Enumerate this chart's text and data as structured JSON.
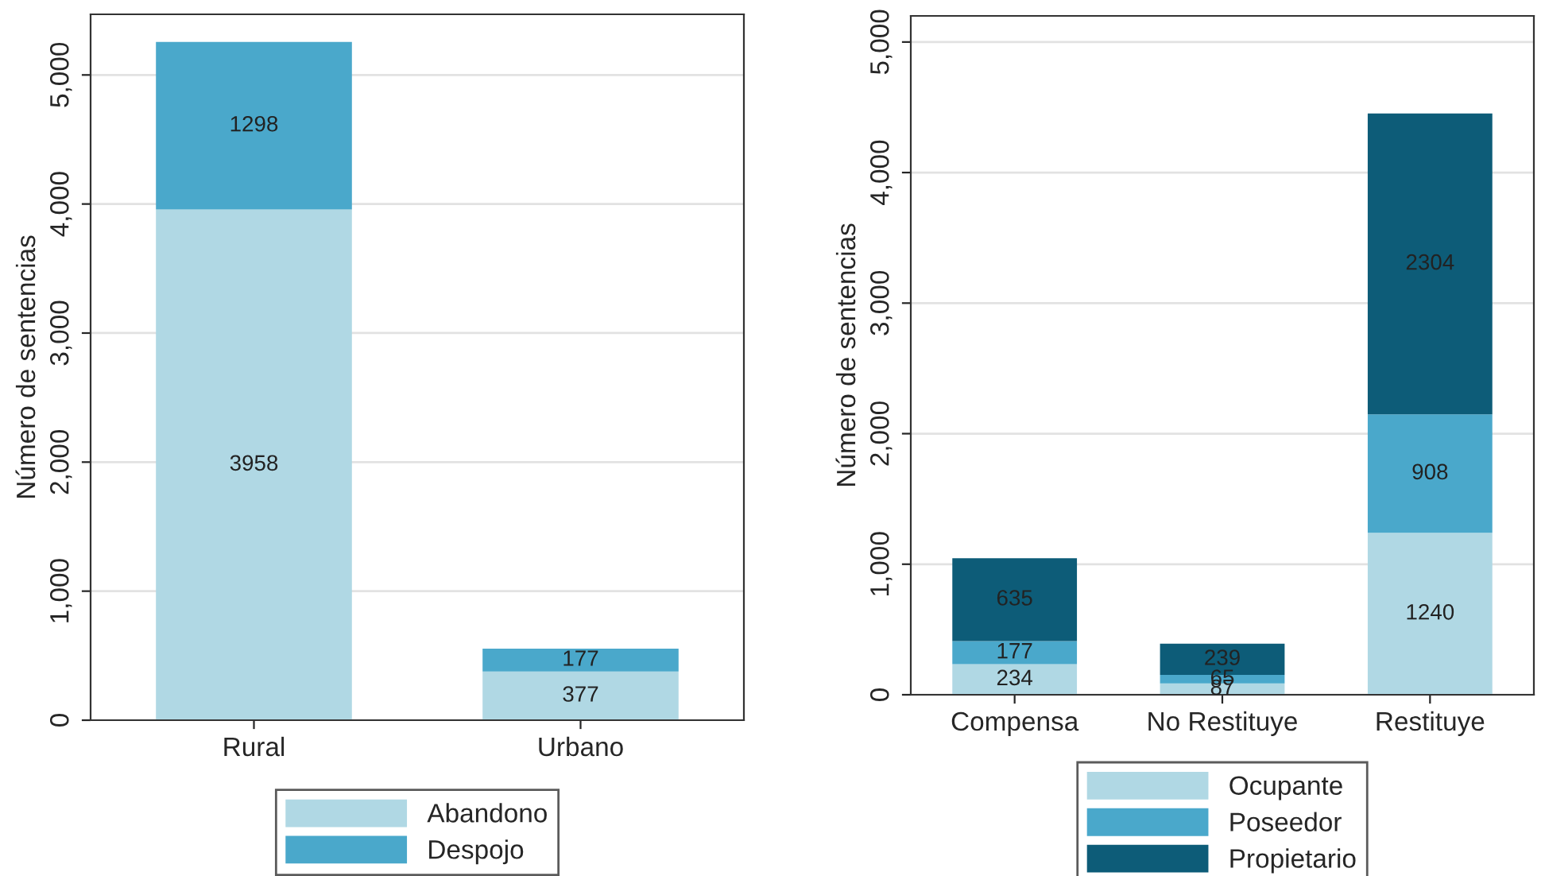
{
  "chart_data": [
    {
      "type": "bar",
      "stacked": true,
      "ylabel": "Número de sentencias",
      "categories": [
        "Rural",
        "Urbano"
      ],
      "series": [
        {
          "name": "Abandono",
          "color": "#b0d8e4",
          "values": [
            3958,
            377
          ]
        },
        {
          "name": "Despojo",
          "color": "#4aa8cb",
          "values": [
            1298,
            177
          ]
        }
      ],
      "ylim": [
        0,
        5470
      ],
      "yticks": [
        0,
        {
          "value": 1000,
          "label": "1,000"
        },
        {
          "value": 2000,
          "label": "2,000"
        },
        {
          "value": 3000,
          "label": "3,000"
        },
        {
          "value": 4000,
          "label": "4,000"
        },
        {
          "value": 5000,
          "label": "5,000"
        }
      ],
      "grid": "y",
      "legend": "bottom",
      "data_labels": true
    },
    {
      "type": "bar",
      "stacked": true,
      "ylabel": "Número de sentencias",
      "categories": [
        "Compensa",
        "No Restituye",
        "Restituye"
      ],
      "series": [
        {
          "name": "Ocupante",
          "color": "#b0d8e4",
          "values": [
            234,
            87,
            1240
          ]
        },
        {
          "name": "Poseedor",
          "color": "#4aa8cb",
          "values": [
            177,
            65,
            908
          ]
        },
        {
          "name": "Propietario",
          "color": "#0d5c78",
          "values": [
            635,
            239,
            2304
          ]
        }
      ],
      "ylim": [
        0,
        5200
      ],
      "yticks": [
        0,
        {
          "value": 1000,
          "label": "1,000"
        },
        {
          "value": 2000,
          "label": "2,000"
        },
        {
          "value": 3000,
          "label": "3,000"
        },
        {
          "value": 4000,
          "label": "4,000"
        },
        {
          "value": 5000,
          "label": "5,000"
        }
      ],
      "grid": "y",
      "legend": "bottom",
      "data_labels": true
    }
  ]
}
